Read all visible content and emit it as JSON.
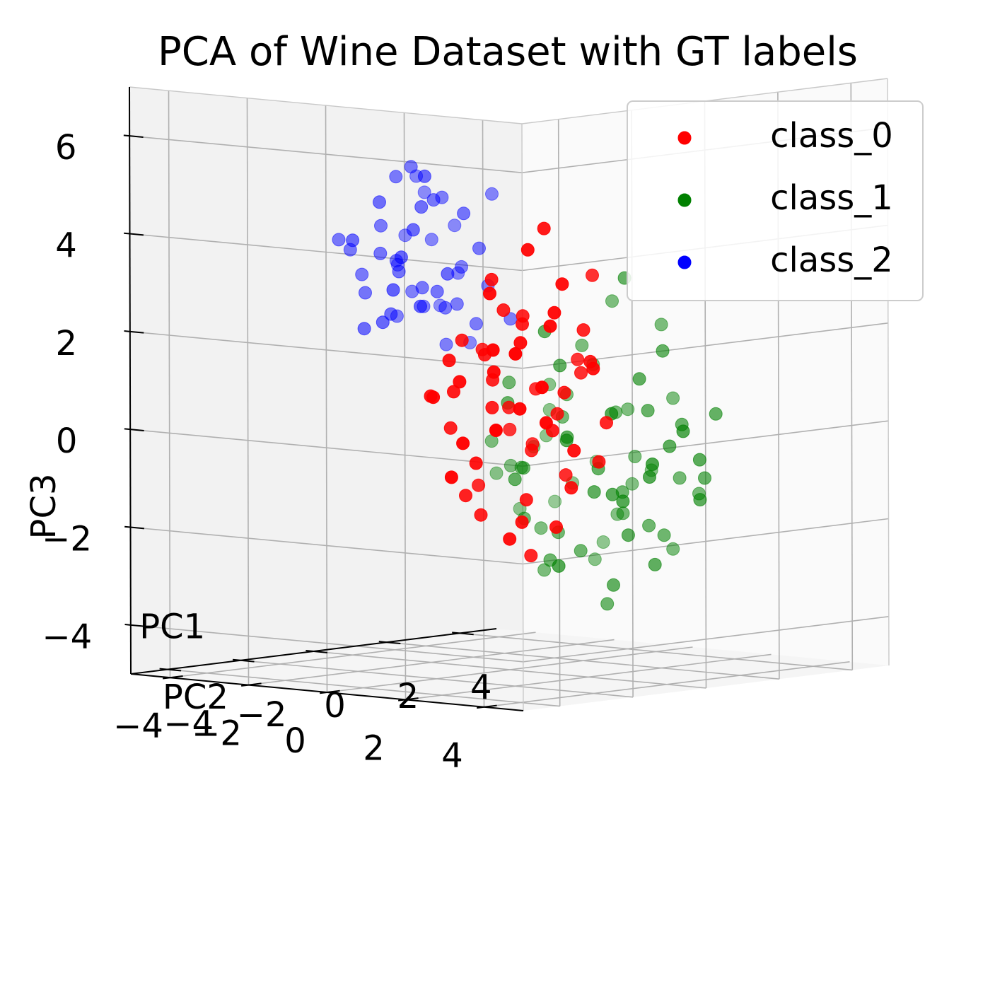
{
  "chart_data": {
    "type": "scatter3d",
    "title": "PCA of Wine Dataset with GT labels",
    "x_axis": {
      "label": "PC1",
      "ticks": [
        -4,
        -2,
        0,
        2,
        4
      ],
      "tick_labels": [
        "−4",
        "−2",
        "0",
        "2",
        "4"
      ]
    },
    "y_axis": {
      "label": "PC2",
      "ticks": [
        -4,
        -2,
        0,
        2,
        4
      ],
      "tick_labels": [
        "−4",
        "−2",
        "0",
        "2",
        "4"
      ]
    },
    "z_axis": {
      "label": "PC3",
      "ticks": [
        -4,
        -2,
        0,
        2,
        4,
        6
      ],
      "tick_labels": [
        "−4",
        "−2",
        "0",
        "2",
        "4",
        "6"
      ]
    },
    "grid": true,
    "legend_position": "top-right",
    "series": [
      {
        "name": "class_0",
        "color": "#ff0000",
        "points": [
          [
            3.1,
            -2.6,
            1.2
          ],
          [
            2.4,
            -3.5,
            0.4
          ],
          [
            2.9,
            -1.6,
            -0.5
          ],
          [
            3.6,
            -2.2,
            1.8
          ],
          [
            2.2,
            -2.9,
            -1.2
          ],
          [
            1.8,
            -2.1,
            0.6
          ],
          [
            3.4,
            -1.1,
            0.9
          ],
          [
            2.6,
            -3.9,
            -1.6
          ],
          [
            3.9,
            -2.8,
            0.2
          ],
          [
            2.0,
            -1.3,
            -0.8
          ],
          [
            1.5,
            -2.6,
            1.4
          ],
          [
            2.8,
            -3.1,
            2.2
          ],
          [
            3.3,
            -0.6,
            -0.3
          ],
          [
            2.5,
            -1.9,
            -1.9
          ],
          [
            1.9,
            -3.3,
            0.9
          ],
          [
            3.7,
            -1.8,
            -1.0
          ],
          [
            2.1,
            -2.4,
            2.6
          ],
          [
            3.0,
            -0.9,
            1.6
          ],
          [
            2.7,
            -2.2,
            -2.4
          ],
          [
            1.6,
            -1.5,
            0.1
          ],
          [
            3.5,
            -3.6,
            -0.7
          ],
          [
            2.3,
            -0.4,
            1.1
          ],
          [
            1.3,
            -2.0,
            -1.5
          ],
          [
            3.2,
            -2.5,
            3.1
          ],
          [
            2.6,
            -1.2,
            -0.1
          ],
          [
            1.7,
            -3.0,
            0.3
          ],
          [
            3.8,
            -1.4,
            0.7
          ],
          [
            2.9,
            -2.7,
            -2.8
          ],
          [
            2.2,
            -1.7,
            1.9
          ],
          [
            1.4,
            -2.8,
            -0.4
          ],
          [
            3.1,
            -3.3,
            1.0
          ],
          [
            2.4,
            -0.8,
            -1.3
          ],
          [
            3.6,
            -2.0,
            2.4
          ],
          [
            1.8,
            -1.0,
            0.5
          ],
          [
            2.7,
            -3.7,
            -0.9
          ],
          [
            3.3,
            -1.5,
            -1.7
          ],
          [
            2.0,
            -2.3,
            0.0
          ],
          [
            1.2,
            -1.8,
            1.3
          ],
          [
            3.4,
            -2.9,
            -0.2
          ],
          [
            2.5,
            -0.5,
            0.8
          ],
          [
            1.9,
            -2.5,
            -2.2
          ],
          [
            3.0,
            -1.9,
            3.6
          ],
          [
            2.8,
            -3.0,
            0.6
          ],
          [
            1.6,
            -0.9,
            -0.6
          ],
          [
            3.7,
            -2.4,
            1.5
          ],
          [
            2.3,
            -1.6,
            -3.0
          ],
          [
            1.5,
            -3.4,
            0.2
          ],
          [
            3.2,
            -0.7,
            -1.1
          ],
          [
            2.1,
            -2.1,
            2.0
          ],
          [
            2.9,
            -1.3,
            0.3
          ],
          [
            1.7,
            -2.7,
            -1.8
          ],
          [
            3.5,
            -3.1,
            0.9
          ],
          [
            2.4,
            -1.9,
            1.7
          ],
          [
            1.3,
            -1.2,
            -0.3
          ],
          [
            3.8,
            -2.6,
            -0.5
          ],
          [
            2.6,
            -0.3,
            2.8
          ],
          [
            2.0,
            -3.8,
            0.1
          ],
          [
            3.1,
            -1.7,
            -2.5
          ],
          [
            1.8,
            -2.3,
            1.1
          ]
        ]
      },
      {
        "name": "class_1",
        "color": "#008000",
        "points": [
          [
            0.3,
            2.6,
            -1.2
          ],
          [
            -0.8,
            2.1,
            0.4
          ],
          [
            0.9,
            3.1,
            -2.1
          ],
          [
            -1.5,
            1.7,
            -0.6
          ],
          [
            0.1,
            1.2,
            1.3
          ],
          [
            -0.4,
            3.5,
            -0.9
          ],
          [
            1.4,
            2.4,
            -2.8
          ],
          [
            -2.1,
            2.9,
            0.2
          ],
          [
            0.6,
            0.9,
            -0.3
          ],
          [
            -1.1,
            1.4,
            -1.7
          ],
          [
            1.8,
            3.3,
            -1.0
          ],
          [
            -0.2,
            2.0,
            -2.4
          ],
          [
            0.4,
            3.8,
            0.8
          ],
          [
            -1.8,
            2.3,
            -0.1
          ],
          [
            1.1,
            1.6,
            -1.4
          ],
          [
            -0.6,
            2.7,
            1.5
          ],
          [
            2.2,
            2.8,
            -0.7
          ],
          [
            -1.3,
            3.6,
            -2.0
          ],
          [
            0.8,
            1.9,
            -3.2
          ],
          [
            -0.9,
            0.8,
            0.6
          ],
          [
            1.5,
            3.0,
            0.1
          ],
          [
            -2.4,
            2.5,
            -1.3
          ],
          [
            0.0,
            3.2,
            -0.4
          ],
          [
            -0.5,
            1.5,
            -2.6
          ],
          [
            1.2,
            2.2,
            1.0
          ],
          [
            -1.6,
            3.1,
            -0.8
          ],
          [
            0.7,
            2.9,
            -1.9
          ],
          [
            -0.1,
            1.0,
            2.0
          ],
          [
            1.9,
            1.8,
            -1.1
          ],
          [
            -1.0,
            2.4,
            0.9
          ],
          [
            0.5,
            3.7,
            -2.3
          ],
          [
            -2.0,
            1.9,
            -0.5
          ],
          [
            1.0,
            2.6,
            0.4
          ],
          [
            -0.7,
            3.4,
            -1.5
          ],
          [
            2.5,
            2.1,
            -0.2
          ],
          [
            -1.4,
            1.3,
            1.1
          ],
          [
            0.2,
            2.3,
            -3.5
          ],
          [
            -0.3,
            3.9,
            -0.6
          ],
          [
            1.6,
            1.4,
            -1.6
          ],
          [
            -1.9,
            2.8,
            0.7
          ],
          [
            0.9,
            3.5,
            -0.9
          ],
          [
            -0.6,
            1.8,
            -2.0
          ],
          [
            1.3,
            2.7,
            1.6
          ],
          [
            -2.3,
            3.3,
            -1.1
          ],
          [
            0.4,
            1.1,
            -0.2
          ],
          [
            -1.2,
            2.0,
            -2.7
          ],
          [
            2.0,
            3.4,
            0.3
          ],
          [
            -0.8,
            2.6,
            1.9
          ],
          [
            0.6,
            1.6,
            -1.3
          ],
          [
            -1.7,
            3.8,
            -0.3
          ],
          [
            1.1,
            2.0,
            -2.2
          ],
          [
            -0.2,
            2.9,
            0.5
          ],
          [
            2.3,
            1.5,
            -0.9
          ],
          [
            -1.5,
            2.2,
            -1.8
          ],
          [
            0.3,
            3.6,
            2.3
          ],
          [
            -0.9,
            1.2,
            -0.7
          ],
          [
            1.7,
            2.5,
            -0.4
          ],
          [
            -2.2,
            1.6,
            0.0
          ],
          [
            0.1,
            2.8,
            -1.6
          ],
          [
            -0.4,
            3.0,
            2.8
          ],
          [
            1.4,
            1.3,
            0.2
          ],
          [
            -1.1,
            3.2,
            -2.4
          ],
          [
            0.8,
            2.2,
            3.1
          ],
          [
            -0.6,
            0.7,
            -1.0
          ],
          [
            2.1,
            2.9,
            -1.5
          ],
          [
            -1.8,
            2.7,
            1.2
          ],
          [
            0.5,
            1.8,
            -0.8
          ],
          [
            -0.3,
            3.3,
            0.6
          ],
          [
            1.0,
            3.9,
            -1.2
          ],
          [
            -2.5,
            2.0,
            -0.6
          ],
          [
            0.7,
            0.6,
            -2.9
          ]
        ]
      },
      {
        "name": "class_2",
        "color": "#0000ff",
        "points": [
          [
            -2.8,
            0.4,
            3.1
          ],
          [
            -3.4,
            1.2,
            4.2
          ],
          [
            -2.1,
            -0.3,
            2.6
          ],
          [
            -3.9,
            0.8,
            3.7
          ],
          [
            -2.5,
            1.9,
            5.1
          ],
          [
            -3.1,
            -0.8,
            2.2
          ],
          [
            -2.2,
            0.9,
            4.6
          ],
          [
            -3.6,
            1.6,
            2.9
          ],
          [
            -2.9,
            -0.1,
            3.4
          ],
          [
            -3.3,
            0.2,
            5.4
          ],
          [
            -2.4,
            1.4,
            2.4
          ],
          [
            -3.8,
            -0.5,
            3.9
          ],
          [
            -2.7,
            0.6,
            4.9
          ],
          [
            -3.0,
            1.8,
            2.1
          ],
          [
            -2.3,
            -0.6,
            3.6
          ],
          [
            -3.5,
            0.0,
            4.4
          ],
          [
            -2.6,
            1.1,
            2.8
          ],
          [
            -3.2,
            -1.0,
            4.0
          ],
          [
            -2.0,
            0.3,
            3.3
          ],
          [
            -3.7,
            1.3,
            5.2
          ],
          [
            -2.8,
            -0.4,
            2.5
          ],
          [
            -3.4,
            0.7,
            3.1
          ],
          [
            -2.5,
            0.1,
            4.7
          ],
          [
            -3.0,
            1.5,
            3.5
          ],
          [
            -2.2,
            -0.9,
            2.9
          ],
          [
            -3.6,
            0.5,
            2.6
          ],
          [
            -2.9,
            1.0,
            5.0
          ],
          [
            -3.3,
            -0.2,
            3.8
          ],
          [
            -2.4,
            1.7,
            3.2
          ],
          [
            -3.8,
            0.9,
            4.3
          ],
          [
            -2.7,
            -0.7,
            2.3
          ],
          [
            -3.1,
            0.4,
            5.6
          ],
          [
            -2.1,
            1.2,
            3.9
          ],
          [
            -3.5,
            -0.4,
            3.0
          ],
          [
            -2.6,
            0.8,
            2.7
          ],
          [
            -3.2,
            1.6,
            4.5
          ],
          [
            -2.3,
            0.0,
            5.3
          ],
          [
            -3.7,
            -0.3,
            3.4
          ],
          [
            -2.9,
            1.1,
            2.0
          ],
          [
            -3.4,
            0.3,
            3.7
          ],
          [
            -2.0,
            1.9,
            2.5
          ],
          [
            -3.9,
            -0.7,
            4.1
          ],
          [
            -2.5,
            0.5,
            3.0
          ],
          [
            -3.0,
            -0.5,
            4.8
          ],
          [
            -2.8,
            1.4,
            3.6
          ],
          [
            -3.3,
            0.9,
            2.8
          ],
          [
            -2.4,
            -0.2,
            4.2
          ],
          [
            -3.6,
            1.0,
            5.5
          ]
        ]
      }
    ]
  }
}
